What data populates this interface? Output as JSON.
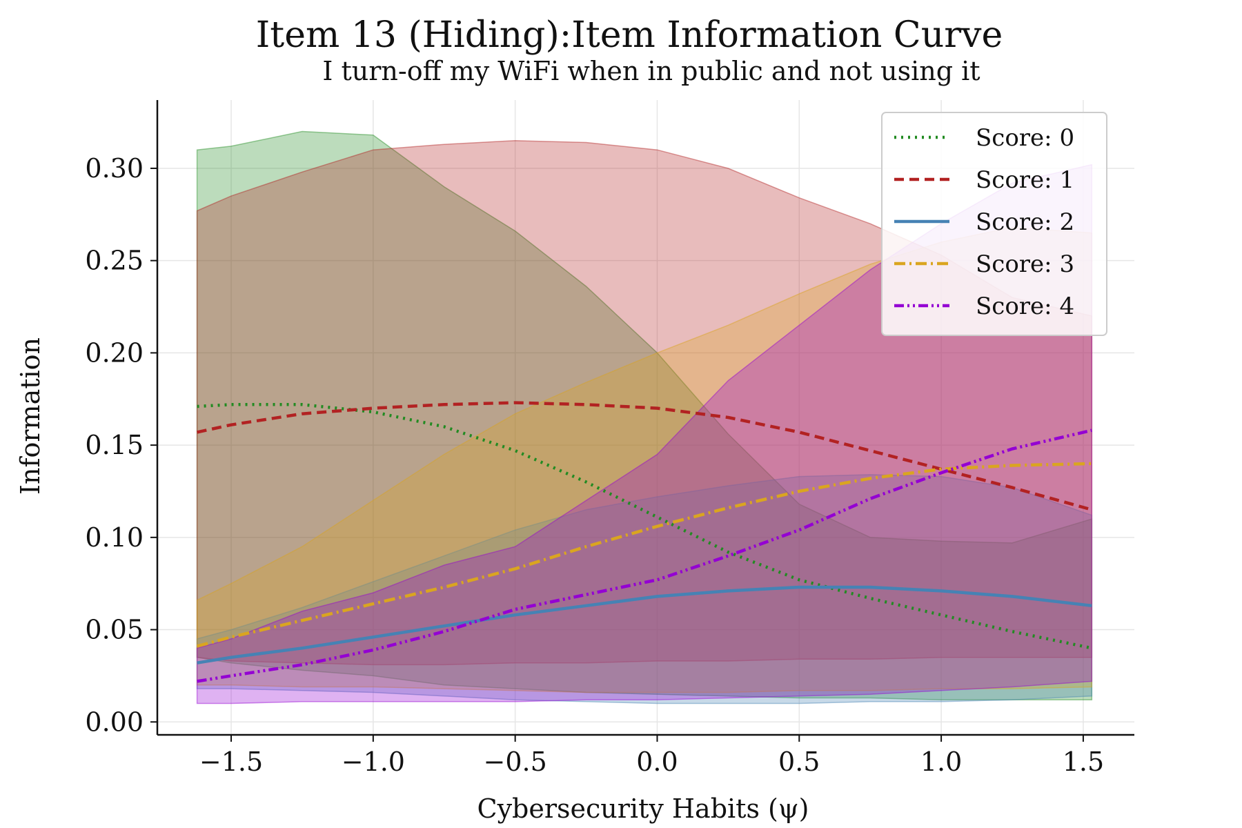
{
  "chart_data": {
    "type": "line",
    "title": "Item 13 (Hiding):Item Information Curve",
    "subtitle": "I turn-off my WiFi when in public and not using it",
    "xlabel": "Cybersecurity Habits (ψ)",
    "ylabel": "Information",
    "xlim": [
      -1.76,
      1.68
    ],
    "ylim": [
      -0.007,
      0.337
    ],
    "xticks": [
      -1.5,
      -1.0,
      -0.5,
      0.0,
      0.5,
      1.0,
      1.5
    ],
    "xtick_labels": [
      "−1.5",
      "−1.0",
      "−0.5",
      "0.0",
      "0.5",
      "1.0",
      "1.5"
    ],
    "yticks": [
      0.0,
      0.05,
      0.1,
      0.15,
      0.2,
      0.25,
      0.3
    ],
    "ytick_labels": [
      "0.00",
      "0.05",
      "0.10",
      "0.15",
      "0.20",
      "0.25",
      "0.30"
    ],
    "grid": true,
    "legend_position": "top-right",
    "x": [
      -1.62,
      -1.5,
      -1.25,
      -1.0,
      -0.75,
      -0.5,
      -0.25,
      0.0,
      0.25,
      0.5,
      0.75,
      1.0,
      1.25,
      1.53
    ],
    "series": [
      {
        "name": "Score: 0",
        "color": "#228B22",
        "line_style": "dotted",
        "values": [
          0.171,
          0.172,
          0.172,
          0.168,
          0.16,
          0.147,
          0.13,
          0.111,
          0.092,
          0.077,
          0.067,
          0.058,
          0.049,
          0.04
        ],
        "band_upper": [
          0.31,
          0.312,
          0.32,
          0.318,
          0.29,
          0.266,
          0.236,
          0.2,
          0.156,
          0.118,
          0.1,
          0.098,
          0.097,
          0.11
        ],
        "band_lower": [
          0.035,
          0.032,
          0.028,
          0.025,
          0.02,
          0.018,
          0.016,
          0.015,
          0.014,
          0.013,
          0.013,
          0.012,
          0.012,
          0.012
        ]
      },
      {
        "name": "Score: 1",
        "color": "#B22222",
        "line_style": "dashed",
        "values": [
          0.157,
          0.161,
          0.167,
          0.17,
          0.172,
          0.173,
          0.172,
          0.17,
          0.165,
          0.157,
          0.147,
          0.137,
          0.127,
          0.115
        ],
        "band_upper": [
          0.277,
          0.285,
          0.298,
          0.31,
          0.313,
          0.315,
          0.314,
          0.31,
          0.3,
          0.284,
          0.27,
          0.253,
          0.23,
          0.22
        ],
        "band_lower": [
          0.035,
          0.033,
          0.032,
          0.031,
          0.031,
          0.032,
          0.032,
          0.033,
          0.033,
          0.034,
          0.034,
          0.035,
          0.035,
          0.035
        ]
      },
      {
        "name": "Score: 2",
        "color": "#4682B4",
        "line_style": "solid",
        "values": [
          0.032,
          0.035,
          0.04,
          0.046,
          0.052,
          0.058,
          0.063,
          0.068,
          0.071,
          0.073,
          0.073,
          0.071,
          0.068,
          0.063
        ],
        "band_upper": [
          0.045,
          0.05,
          0.062,
          0.076,
          0.09,
          0.104,
          0.115,
          0.122,
          0.128,
          0.133,
          0.134,
          0.133,
          0.127,
          0.112
        ],
        "band_lower": [
          0.018,
          0.018,
          0.017,
          0.016,
          0.014,
          0.012,
          0.011,
          0.01,
          0.01,
          0.01,
          0.011,
          0.011,
          0.012,
          0.014
        ]
      },
      {
        "name": "Score: 3",
        "color": "#DAA520",
        "line_style": "dashdot",
        "values": [
          0.041,
          0.046,
          0.055,
          0.064,
          0.073,
          0.083,
          0.095,
          0.106,
          0.116,
          0.125,
          0.132,
          0.137,
          0.139,
          0.14
        ],
        "band_upper": [
          0.066,
          0.075,
          0.095,
          0.12,
          0.145,
          0.167,
          0.184,
          0.2,
          0.215,
          0.232,
          0.248,
          0.26,
          0.268,
          0.265
        ],
        "band_lower": [
          0.02,
          0.02,
          0.019,
          0.019,
          0.018,
          0.017,
          0.016,
          0.016,
          0.016,
          0.017,
          0.017,
          0.018,
          0.018,
          0.019
        ]
      },
      {
        "name": "Score: 4",
        "color": "#9400D3",
        "line_style": "dashdotdot",
        "values": [
          0.022,
          0.025,
          0.031,
          0.039,
          0.049,
          0.061,
          0.069,
          0.077,
          0.09,
          0.104,
          0.121,
          0.135,
          0.148,
          0.158
        ],
        "band_upper": [
          0.04,
          0.045,
          0.06,
          0.07,
          0.085,
          0.095,
          0.12,
          0.145,
          0.185,
          0.215,
          0.245,
          0.27,
          0.292,
          0.302
        ],
        "band_lower": [
          0.01,
          0.01,
          0.011,
          0.011,
          0.011,
          0.011,
          0.012,
          0.012,
          0.013,
          0.014,
          0.015,
          0.017,
          0.019,
          0.022
        ]
      }
    ]
  }
}
